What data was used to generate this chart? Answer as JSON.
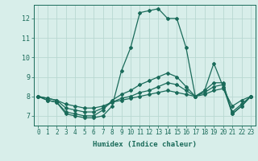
{
  "title": "",
  "xlabel": "Humidex (Indice chaleur)",
  "ylabel": "",
  "bg_color": "#d8eeea",
  "line_color": "#1a6b5a",
  "grid_color": "#b8d8d2",
  "xlim": [
    -0.5,
    23.5
  ],
  "ylim": [
    6.5,
    12.7
  ],
  "yticks": [
    7,
    8,
    9,
    10,
    11,
    12
  ],
  "xticks": [
    0,
    1,
    2,
    3,
    4,
    5,
    6,
    7,
    8,
    9,
    10,
    11,
    12,
    13,
    14,
    15,
    16,
    17,
    18,
    19,
    20,
    21,
    22,
    23
  ],
  "lines": [
    [
      8.0,
      7.8,
      7.7,
      7.1,
      7.0,
      6.9,
      6.9,
      7.0,
      7.5,
      9.3,
      10.5,
      12.3,
      12.4,
      12.5,
      12.0,
      12.0,
      10.5,
      8.0,
      8.3,
      9.7,
      8.5,
      7.1,
      7.5,
      8.0
    ],
    [
      8.0,
      7.8,
      7.7,
      7.2,
      7.1,
      7.0,
      7.0,
      7.3,
      7.8,
      8.1,
      8.3,
      8.6,
      8.8,
      9.0,
      9.2,
      9.0,
      8.5,
      8.0,
      8.3,
      8.7,
      8.7,
      7.1,
      7.5,
      8.0
    ],
    [
      8.0,
      7.9,
      7.8,
      7.4,
      7.3,
      7.2,
      7.2,
      7.4,
      7.7,
      7.9,
      8.0,
      8.2,
      8.3,
      8.5,
      8.7,
      8.6,
      8.3,
      8.0,
      8.2,
      8.5,
      8.6,
      7.2,
      7.6,
      8.0
    ],
    [
      8.0,
      7.9,
      7.8,
      7.6,
      7.5,
      7.4,
      7.4,
      7.5,
      7.7,
      7.8,
      7.9,
      8.0,
      8.1,
      8.2,
      8.3,
      8.2,
      8.1,
      8.0,
      8.1,
      8.3,
      8.4,
      7.5,
      7.8,
      8.0
    ]
  ],
  "tick_fontsize": 5.5,
  "xlabel_fontsize": 6.5,
  "marker_size": 2.0,
  "line_width": 0.9
}
